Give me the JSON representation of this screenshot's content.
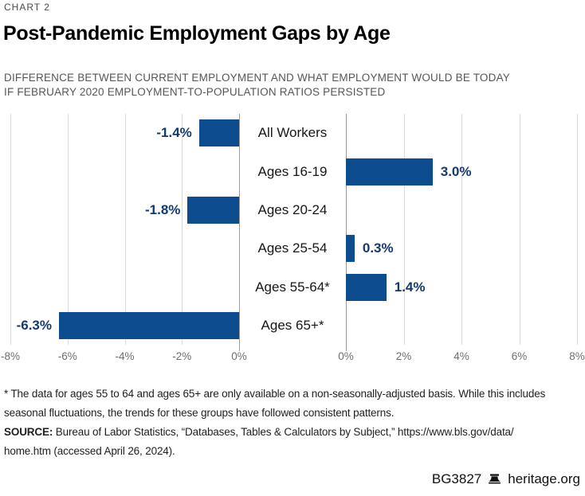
{
  "header": {
    "kicker": "CHART 2",
    "title": "Post-Pandemic Employment Gaps by Age",
    "subtitle_lines": [
      "DIFFERENCE BETWEEN CURRENT EMPLOYMENT AND WHAT EMPLOYMENT WOULD BE TODAY",
      "IF FEBRUARY 2020 EMPLOYMENT-TO-POPULATION RATIOS PERSISTED"
    ]
  },
  "chart_data": {
    "type": "bar",
    "orientation": "horizontal-diverging",
    "title": "Post-Pandemic Employment Gaps by Age",
    "categories": [
      "All Workers",
      "Ages 16-19",
      "Ages 20-24",
      "Ages 25-54",
      "Ages 55-64*",
      "Ages 65+*"
    ],
    "values": [
      -1.4,
      3.0,
      -1.8,
      0.3,
      1.4,
      -6.3
    ],
    "value_labels": [
      "-1.4%",
      "3.0%",
      "-1.8%",
      "0.3%",
      "1.4%",
      "-6.3%"
    ],
    "xlim": [
      -8,
      8
    ],
    "x_ticks_left": [
      "-8%",
      "-6%",
      "-4%",
      "-2%",
      "0%"
    ],
    "x_ticks_right": [
      "0%",
      "2%",
      "4%",
      "6%",
      "8%"
    ],
    "grid": true,
    "legend": "none",
    "colors": {
      "bar": "#0d4d8f",
      "value_label": "#123a70",
      "gridline": "#dadada",
      "zero_axis": "#9b9b9b",
      "tick_label": "#6e6e6e",
      "category_label": "#161616"
    }
  },
  "footer": {
    "footnote_lines": [
      "* The data for ages 55 to 64 and ages 65+ are only available on a non-seasonally-adjusted basis. While this includes",
      "seasonal fluctuations, the trends for these groups have followed consistent patterns."
    ],
    "source_label": "SOURCE:",
    "source_rest": " Bureau of Labor Statistics, “Databases, Tables & Calculators by Subject,” https://www.bls.gov/data/",
    "source_line2": "home.htm (accessed April 26, 2024).",
    "report_id": "BG3827",
    "brand_icon": "liberty-bell",
    "brand": "heritage.org"
  }
}
